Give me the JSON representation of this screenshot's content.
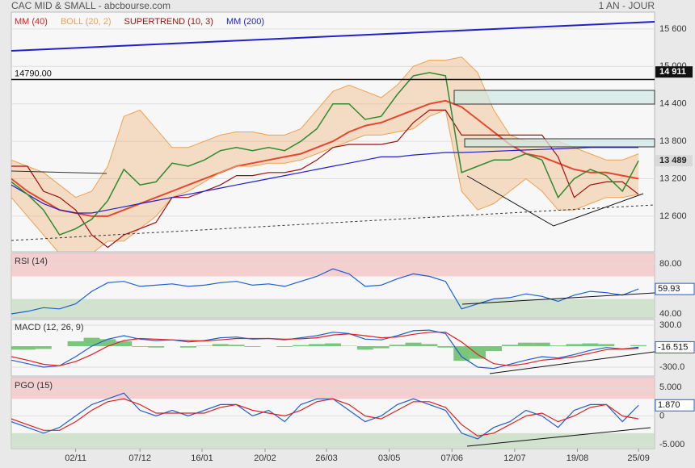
{
  "chart_data": [
    {
      "type": "line",
      "title": "CAC MID & SMALL - abcbourse.com",
      "subtitle": "1 AN - JOUR",
      "x": [
        0,
        1,
        2,
        3,
        4,
        5,
        6,
        7,
        8,
        9,
        10,
        11,
        12,
        13,
        14,
        15,
        16,
        17,
        18,
        19,
        20,
        21,
        22,
        23,
        24,
        25,
        26,
        27,
        28,
        29,
        30,
        31,
        32,
        33,
        34,
        35,
        36,
        37,
        38,
        39
      ],
      "xlim": [
        0,
        40
      ],
      "ylim": [
        12030,
        15870
      ],
      "yticks": [
        {
          "value": 12600,
          "label": "12 600"
        },
        {
          "value": 13200,
          "label": "13 200"
        },
        {
          "value": 13800,
          "label": "13 800"
        },
        {
          "value": 14400,
          "label": "14 400"
        },
        {
          "value": 15000,
          "label": "15 000"
        },
        {
          "value": 15600,
          "label": "15 600"
        }
      ],
      "grid": true,
      "price": {
        "color": "#2e8b2e",
        "values": [
          13150,
          12950,
          12700,
          12300,
          12400,
          12550,
          12850,
          13350,
          13100,
          13150,
          13450,
          13400,
          13500,
          13650,
          13700,
          13650,
          13700,
          13650,
          13800,
          14000,
          14400,
          14400,
          14150,
          14200,
          14550,
          14850,
          14900,
          14850,
          13300,
          13400,
          13500,
          13500,
          13600,
          13500,
          12900,
          13200,
          13350,
          13250,
          13000,
          13489
        ]
      },
      "series": [
        {
          "name": "MM (40)",
          "color": "#e02020",
          "values": [
            13200,
            13000,
            12850,
            12700,
            12650,
            12600,
            12600,
            12700,
            12800,
            12900,
            13000,
            13100,
            13200,
            13300,
            13400,
            13450,
            13500,
            13550,
            13600,
            13700,
            13800,
            13950,
            14050,
            14100,
            14200,
            14300,
            14400,
            14450,
            14350,
            14150,
            13950,
            13750,
            13600,
            13550,
            13450,
            13350,
            13300,
            13300,
            13250,
            13200
          ]
        },
        {
          "name": "BOLL (20, 2)",
          "color": "#f0a050",
          "values": [
            13500,
            13400,
            13300,
            13100,
            12900,
            13000,
            13400,
            14200,
            14300,
            14000,
            13700,
            13700,
            13800,
            13900,
            13950,
            13950,
            13900,
            13900,
            14000,
            14300,
            14600,
            14700,
            14600,
            14500,
            14700,
            15000,
            15100,
            15100,
            15150,
            14900,
            14300,
            13900,
            13800,
            13800,
            13800,
            13700,
            13600,
            13500,
            13500,
            13600
          ],
          "lower": [
            12900,
            12600,
            12300,
            12000,
            11950,
            12000,
            12200,
            12200,
            12400,
            12600,
            12900,
            13000,
            13150,
            13300,
            13400,
            13400,
            13450,
            13450,
            13500,
            13600,
            13700,
            13800,
            13900,
            13900,
            13950,
            14000,
            14200,
            14300,
            13000,
            12700,
            12800,
            13000,
            13200,
            13000,
            12700,
            12700,
            12800,
            12900,
            12900,
            12950
          ]
        },
        {
          "name": "SUPERTREND (10, 3)",
          "color": "#a01010",
          "values": [
            13400,
            13400,
            13000,
            12900,
            12700,
            12300,
            12100,
            12300,
            12400,
            12500,
            12900,
            12900,
            13000,
            13100,
            13250,
            13250,
            13300,
            13300,
            13350,
            13500,
            13700,
            13750,
            13750,
            13750,
            13800,
            14100,
            14300,
            14300,
            13900,
            13900,
            13900,
            13900,
            13900,
            13900,
            13550,
            12900,
            13100,
            13150,
            13150,
            12950
          ]
        },
        {
          "name": "MM (200)",
          "color": "#2020d0",
          "values": [
            13100,
            12950,
            12800,
            12700,
            12650,
            12650,
            12700,
            12750,
            12800,
            12850,
            12900,
            12950,
            13000,
            13050,
            13100,
            13150,
            13200,
            13250,
            13300,
            13350,
            13400,
            13450,
            13500,
            13550,
            13550,
            13580,
            13600,
            13620,
            13620,
            13630,
            13640,
            13650,
            13660,
            13670,
            13680,
            13690,
            13700,
            13700,
            13700,
            13700
          ]
        }
      ],
      "annotations": [
        {
          "value": 14790,
          "label": "14790.00"
        }
      ],
      "price_labels": [
        {
          "value": 14911,
          "label": "14 911"
        },
        {
          "value": 13489,
          "label": "13 489"
        }
      ]
    },
    {
      "type": "line",
      "title": "RSI (14)",
      "x": [
        0,
        1,
        2,
        3,
        4,
        5,
        6,
        7,
        8,
        9,
        10,
        11,
        12,
        13,
        14,
        15,
        16,
        17,
        18,
        19,
        20,
        21,
        22,
        23,
        24,
        25,
        26,
        27,
        28,
        29,
        30,
        31,
        32,
        33,
        34,
        35,
        36,
        37,
        38,
        39
      ],
      "xlim": [
        0,
        40
      ],
      "ylim": [
        36.8,
        88.4
      ],
      "yticks": [
        {
          "value": 40,
          "label": "40.00"
        },
        {
          "value": 80,
          "label": "80.00"
        }
      ],
      "zones": {
        "upper": 70,
        "lower": 52
      },
      "series": [
        {
          "color": "#1f5fd0",
          "values": [
            40,
            42,
            45,
            44,
            48,
            58,
            65,
            66,
            62,
            63,
            64,
            62,
            63,
            65,
            66,
            63,
            64,
            62,
            66,
            70,
            76,
            72,
            62,
            63,
            68,
            72,
            70,
            66,
            44,
            48,
            52,
            53,
            56,
            54,
            50,
            55,
            58,
            57,
            55,
            59.93
          ]
        }
      ],
      "current": {
        "value": 59.93,
        "label": "59.93"
      }
    },
    {
      "type": "line",
      "title": "MACD (12, 26, 9)",
      "x": [
        0,
        1,
        2,
        3,
        4,
        5,
        6,
        7,
        8,
        9,
        10,
        11,
        12,
        13,
        14,
        15,
        16,
        17,
        18,
        19,
        20,
        21,
        22,
        23,
        24,
        25,
        26,
        27,
        28,
        29,
        30,
        31,
        32,
        33,
        34,
        35,
        36,
        37,
        38,
        39
      ],
      "xlim": [
        0,
        40
      ],
      "ylim": [
        -427,
        381
      ],
      "yticks": [
        {
          "value": -300,
          "label": "-300.0"
        },
        {
          "value": 300,
          "label": "300.0"
        }
      ],
      "histogram": {
        "color": "#5cb85c",
        "values": [
          -50,
          -50,
          -40,
          0,
          70,
          120,
          100,
          70,
          -10,
          -20,
          0,
          -20,
          5,
          30,
          20,
          -10,
          0,
          -10,
          15,
          30,
          40,
          5,
          -50,
          -30,
          20,
          50,
          30,
          -20,
          -210,
          -180,
          -70,
          20,
          50,
          50,
          10,
          30,
          40,
          30,
          0,
          14
        ]
      },
      "series": [
        {
          "color": "#1f5fd0",
          "values": [
            -200,
            -250,
            -300,
            -280,
            -150,
            0,
            100,
            150,
            100,
            80,
            90,
            60,
            80,
            120,
            130,
            100,
            110,
            90,
            120,
            150,
            200,
            180,
            100,
            90,
            150,
            220,
            230,
            180,
            -150,
            -300,
            -320,
            -260,
            -200,
            -150,
            -170,
            -120,
            -60,
            -20,
            -40,
            -16.515
          ]
        },
        {
          "color": "#e02020",
          "values": [
            -150,
            -200,
            -260,
            -280,
            -220,
            -120,
            0,
            80,
            110,
            100,
            90,
            80,
            75,
            90,
            110,
            110,
            110,
            100,
            105,
            120,
            160,
            175,
            150,
            120,
            130,
            170,
            200,
            200,
            60,
            -120,
            -250,
            -280,
            -250,
            -200,
            -180,
            -150,
            -100,
            -50,
            -40,
            -30
          ]
        }
      ],
      "current": {
        "value": -16.515,
        "label": "-16.515"
      }
    },
    {
      "type": "line",
      "title": "PGO (15)",
      "x": [
        0,
        1,
        2,
        3,
        4,
        5,
        6,
        7,
        8,
        9,
        10,
        11,
        12,
        13,
        14,
        15,
        16,
        17,
        18,
        19,
        20,
        21,
        22,
        23,
        24,
        25,
        26,
        27,
        28,
        29,
        30,
        31,
        32,
        33,
        34,
        35,
        36,
        37,
        38,
        39
      ],
      "xlim": [
        0,
        40
      ],
      "ylim": [
        -5.7,
        6.7
      ],
      "yticks": [
        {
          "value": -5,
          "label": "-5.000"
        },
        0,
        {
          "value": 5,
          "label": "5.000"
        }
      ],
      "zones": {
        "upper": 3,
        "lower": -3
      },
      "series": [
        {
          "color": "#1f5fd0",
          "values": [
            -1,
            -2,
            -3,
            -2,
            0,
            2,
            3,
            4,
            1,
            0,
            1,
            0,
            1,
            2,
            2,
            0,
            1,
            -1,
            2,
            3,
            3,
            1,
            -1,
            0,
            2,
            3,
            2,
            1,
            -3,
            -4,
            -2,
            -1,
            1,
            0,
            -2,
            1,
            2,
            2,
            -1,
            1.87
          ]
        },
        {
          "color": "#e02020",
          "values": [
            -0.5,
            -1.5,
            -2.5,
            -2.5,
            -1,
            1,
            2.5,
            3,
            2,
            0.5,
            0.5,
            0.5,
            0.5,
            1.5,
            2,
            1,
            0.5,
            0,
            1,
            2.5,
            3,
            2,
            0,
            -0.5,
            1,
            2.5,
            2.5,
            1.5,
            -1.5,
            -3.5,
            -3,
            -1.5,
            0,
            0.5,
            -1,
            0,
            1.5,
            2,
            0,
            -0.5
          ]
        }
      ],
      "current": {
        "value": 1.87,
        "label": "1.870"
      },
      "xticks": [
        {
          "value": 4,
          "label": "02/11"
        },
        {
          "value": 8,
          "label": "07/12"
        },
        {
          "value": 11.86,
          "label": "16/01"
        },
        {
          "value": 15.78,
          "label": "20/02"
        },
        {
          "value": 19.6,
          "label": "26/03"
        },
        {
          "value": 23.5,
          "label": "03/05"
        },
        {
          "value": 27.4,
          "label": "07/06"
        },
        {
          "value": 31.3,
          "label": "12/07"
        },
        {
          "value": 35.2,
          "label": "19/08"
        },
        {
          "value": 39,
          "label": "25/09"
        }
      ]
    }
  ]
}
